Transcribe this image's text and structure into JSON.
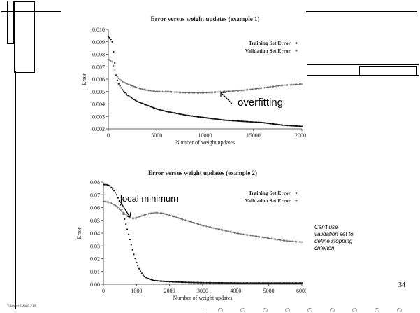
{
  "slide": {
    "annotation_overfitting": "overfitting",
    "annotation_local_minimum": "local minimum",
    "side_note": "Can't use validation set to define stopping criterion",
    "page_number": "34",
    "footer": "V.Lesser CS683 F10"
  },
  "chart_data": [
    {
      "type": "scatter",
      "title": "Error versus weight updates (example 1)",
      "xlabel": "Number of weight updates",
      "ylabel": "Error",
      "xlim": [
        0,
        20000
      ],
      "ylim": [
        0.002,
        0.01
      ],
      "xticks": [
        0,
        5000,
        10000,
        15000,
        20000
      ],
      "yticks": [
        0.002,
        0.003,
        0.004,
        0.005,
        0.006,
        0.007,
        0.008,
        0.009,
        0.01
      ],
      "legend": "top-right",
      "series": [
        {
          "name": "Training Set Error",
          "marker": "dot",
          "x": [
            0,
            200,
            400,
            600,
            800,
            1000,
            1500,
            2000,
            3000,
            4000,
            5000,
            6000,
            8000,
            10000,
            12000,
            14000,
            16000,
            18000,
            20000
          ],
          "y": [
            0.0094,
            0.0093,
            0.009,
            0.0078,
            0.0063,
            0.0057,
            0.0051,
            0.0047,
            0.0042,
            0.0039,
            0.0036,
            0.0034,
            0.0031,
            0.0029,
            0.0027,
            0.0026,
            0.0025,
            0.0023,
            0.0022
          ]
        },
        {
          "name": "Validation Set Error",
          "marker": "plus",
          "x": [
            0,
            200,
            400,
            600,
            800,
            1000,
            1500,
            2000,
            3000,
            4000,
            5000,
            6000,
            8000,
            10000,
            12000,
            14000,
            16000,
            18000,
            20000
          ],
          "y": [
            0.0076,
            0.0075,
            0.0074,
            0.0069,
            0.0064,
            0.0061,
            0.0058,
            0.0056,
            0.0053,
            0.0051,
            0.005,
            0.005,
            0.0049,
            0.0049,
            0.005,
            0.0051,
            0.0053,
            0.0055,
            0.0056
          ]
        }
      ]
    },
    {
      "type": "scatter",
      "title": "Error versus weight updates (example 2)",
      "xlabel": "Number of weight updates",
      "ylabel": "Error",
      "xlim": [
        0,
        6000
      ],
      "ylim": [
        0,
        0.08
      ],
      "xticks": [
        0,
        1000,
        2000,
        3000,
        4000,
        5000,
        6000
      ],
      "yticks": [
        0,
        0.01,
        0.02,
        0.03,
        0.04,
        0.05,
        0.06,
        0.07,
        0.08
      ],
      "legend": "top-right",
      "series": [
        {
          "name": "Training Set Error",
          "marker": "dot",
          "x": [
            0,
            100,
            200,
            300,
            400,
            500,
            600,
            700,
            800,
            900,
            1000,
            1100,
            1200,
            1300,
            1400,
            1500,
            1700,
            2000,
            2500,
            3000,
            4000,
            5000,
            6000
          ],
          "y": [
            0.078,
            0.078,
            0.077,
            0.074,
            0.07,
            0.064,
            0.055,
            0.045,
            0.035,
            0.025,
            0.017,
            0.011,
            0.007,
            0.005,
            0.004,
            0.003,
            0.0025,
            0.002,
            0.0015,
            0.0012,
            0.001,
            0.001,
            0.001
          ]
        },
        {
          "name": "Validation Set Error",
          "marker": "plus",
          "x": [
            0,
            200,
            400,
            600,
            800,
            900,
            1000,
            1200,
            1400,
            1600,
            1800,
            2000,
            2500,
            3000,
            3500,
            4000,
            4500,
            5000,
            5500,
            6000
          ],
          "y": [
            0.065,
            0.064,
            0.061,
            0.056,
            0.052,
            0.0515,
            0.052,
            0.054,
            0.0555,
            0.056,
            0.0555,
            0.054,
            0.05,
            0.046,
            0.043,
            0.04,
            0.038,
            0.036,
            0.034,
            0.033
          ]
        }
      ]
    }
  ]
}
